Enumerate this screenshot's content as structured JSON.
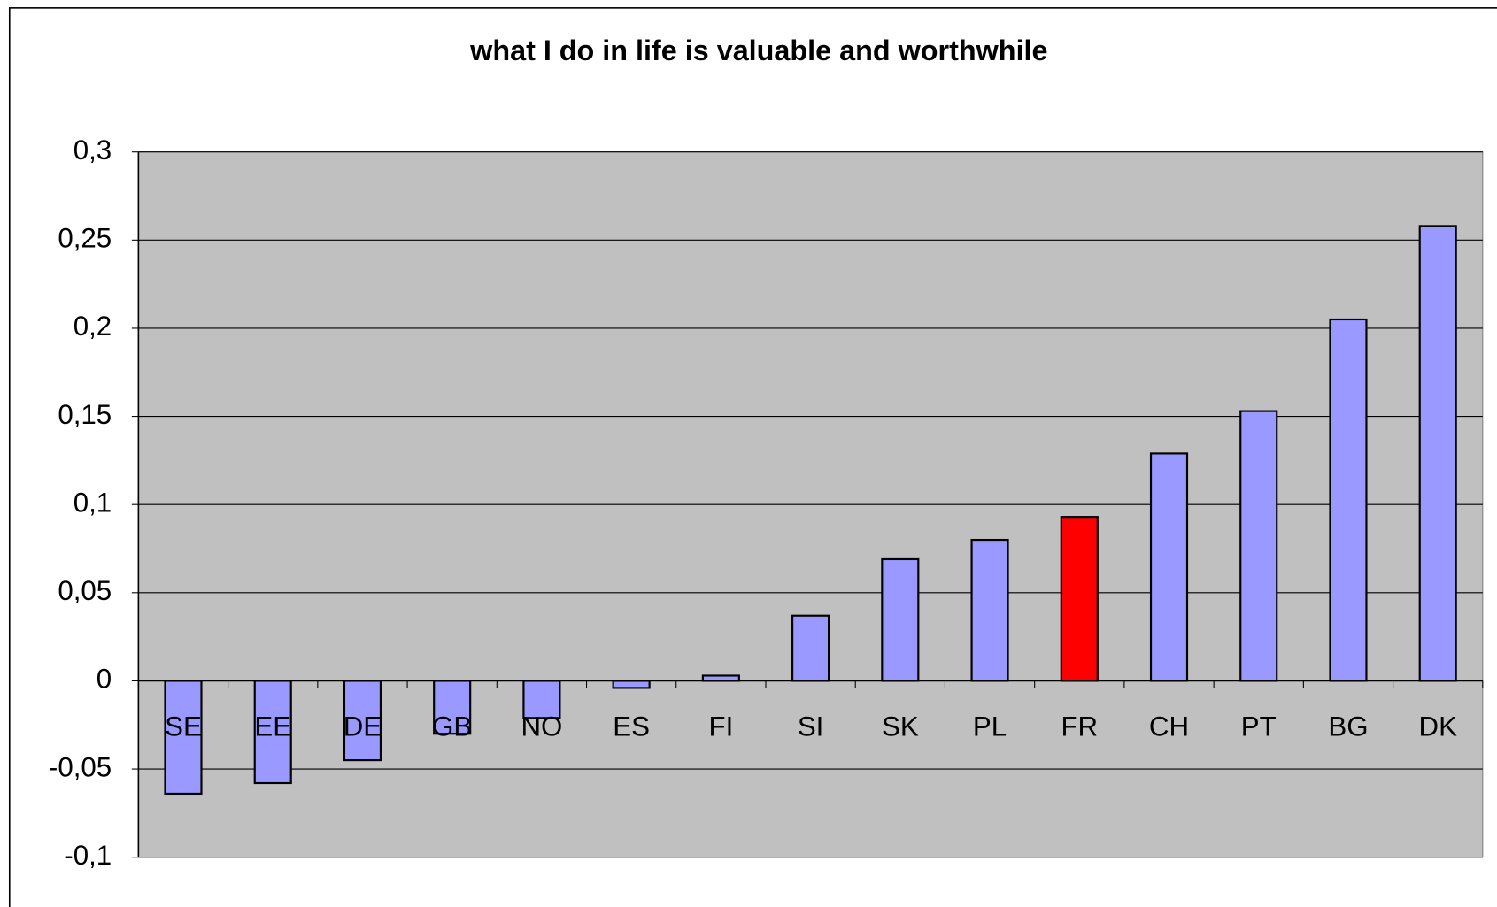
{
  "chart_data": {
    "type": "bar",
    "title": "what I do in life is valuable and worthwhile",
    "categories": [
      "SE",
      "EE",
      "DE",
      "GB",
      "NO",
      "ES",
      "FI",
      "SI",
      "SK",
      "PL",
      "FR",
      "CH",
      "PT",
      "BG",
      "DK"
    ],
    "values": [
      -0.064,
      -0.058,
      -0.045,
      -0.03,
      -0.021,
      -0.004,
      0.003,
      0.037,
      0.069,
      0.08,
      0.093,
      0.129,
      0.153,
      0.205,
      0.258
    ],
    "colors": [
      "#9999ff",
      "#9999ff",
      "#9999ff",
      "#9999ff",
      "#9999ff",
      "#9999ff",
      "#9999ff",
      "#9999ff",
      "#9999ff",
      "#9999ff",
      "#ff0000",
      "#9999ff",
      "#9999ff",
      "#9999ff",
      "#9999ff"
    ],
    "ylim": [
      -0.1,
      0.3
    ],
    "yticks": [
      {
        "value": -0.1,
        "label": "-0,1"
      },
      {
        "value": -0.05,
        "label": "-0,05"
      },
      0,
      {
        "value": 0.05,
        "label": "0,05"
      },
      {
        "value": 0.1,
        "label": "0,1"
      },
      {
        "value": 0.15,
        "label": "0,15"
      },
      {
        "value": 0.2,
        "label": "0,2"
      },
      {
        "value": 0.25,
        "label": "0,25"
      },
      {
        "value": 0.3,
        "label": "0,3"
      }
    ],
    "grid": true,
    "plot_background": "#c0c0c0"
  }
}
